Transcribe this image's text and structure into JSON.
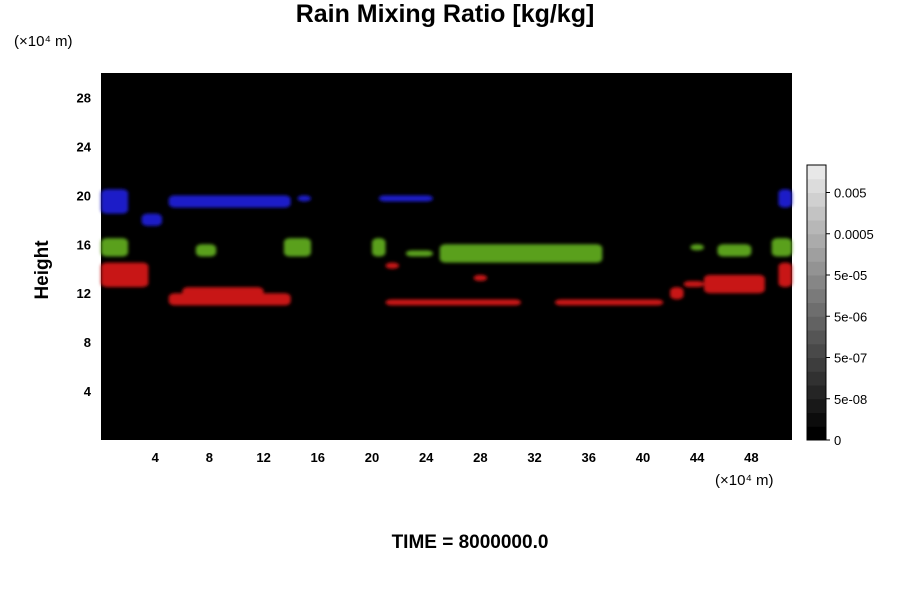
{
  "chart_data": {
    "type": "heatmap",
    "title": "Rain Mixing Ratio [kg/kg]",
    "ylabel": "Height",
    "x_unit": "(×10⁴ m)",
    "y_unit": "(×10⁴ m)",
    "footer": "TIME = 8000000.0",
    "xlim": [
      0,
      51
    ],
    "ylim": [
      0,
      30
    ],
    "x_ticks": [
      4,
      8,
      12,
      16,
      20,
      24,
      28,
      32,
      36,
      40,
      44,
      48
    ],
    "y_ticks": [
      4,
      8,
      12,
      16,
      20,
      24,
      28
    ],
    "background_color": "#000000",
    "colorbar": {
      "tick_labels": [
        "0",
        "5e-08",
        "5e-07",
        "5e-06",
        "5e-05",
        "0.0005",
        "0.005"
      ],
      "level_count": 20
    },
    "regions": [
      {
        "color": "#1e1ec8",
        "cells": [
          [
            0,
            18.5,
            2,
            2
          ],
          [
            3,
            17.5,
            1.5,
            1
          ],
          [
            5,
            19,
            9,
            1
          ],
          [
            50,
            19,
            1,
            1.5
          ],
          [
            14.5,
            19.5,
            1,
            0.5
          ],
          [
            20.5,
            19.5,
            4,
            0.5
          ]
        ]
      },
      {
        "color": "#5aa01e",
        "cells": [
          [
            0,
            15,
            2,
            1.5
          ],
          [
            7,
            15,
            1.5,
            1
          ],
          [
            13.5,
            15,
            2,
            1.5
          ],
          [
            20,
            15,
            1,
            1.5
          ],
          [
            25,
            14.5,
            12,
            1.5
          ],
          [
            22.5,
            15,
            2,
            0.5
          ],
          [
            45.5,
            15,
            2.5,
            1
          ],
          [
            49.5,
            15,
            1.5,
            1.5
          ],
          [
            43.5,
            15.5,
            1,
            0.5
          ]
        ]
      },
      {
        "color": "#c81414",
        "cells": [
          [
            0,
            12.5,
            3.5,
            2
          ],
          [
            5,
            11,
            9,
            1
          ],
          [
            6,
            11.5,
            6,
            1
          ],
          [
            21,
            11,
            10,
            0.5
          ],
          [
            33.5,
            11,
            8,
            0.5
          ],
          [
            44.5,
            12,
            4.5,
            1.5
          ],
          [
            43,
            12.5,
            1.5,
            0.5
          ],
          [
            42,
            11.5,
            1,
            1
          ],
          [
            50,
            12.5,
            1,
            2
          ],
          [
            27.5,
            13,
            1,
            0.5
          ],
          [
            21,
            14,
            1,
            0.5
          ]
        ]
      }
    ]
  }
}
